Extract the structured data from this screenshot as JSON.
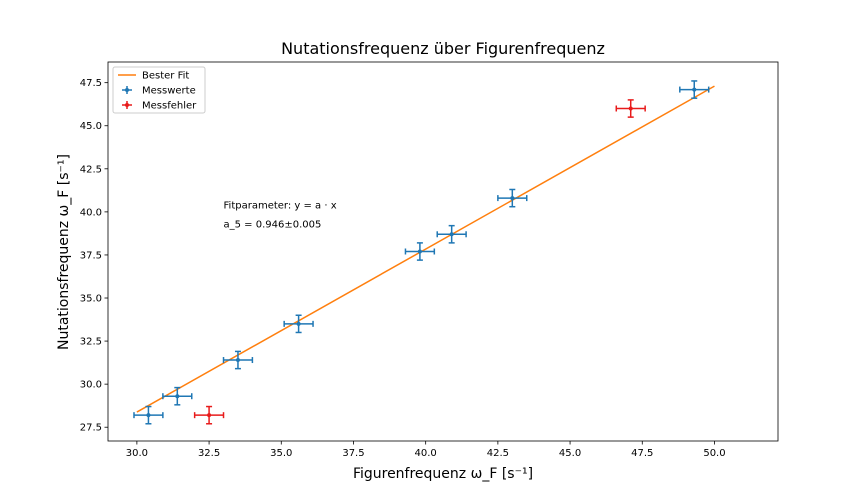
{
  "chart_data": {
    "type": "scatter",
    "title": "Nutationsfrequenz über Figurenfrequenz",
    "xlabel": "Figurenfrequenz ω_F [s⁻¹]",
    "ylabel": "Nutationsfrequenz ω_F [s⁻¹]",
    "xlim": [
      29.0,
      52.2
    ],
    "ylim": [
      26.7,
      48.7
    ],
    "xticks": [
      30.0,
      32.5,
      35.0,
      37.5,
      40.0,
      42.5,
      45.0,
      47.5,
      50.0
    ],
    "xtick_labels": [
      "30.0",
      "32.5",
      "35.0",
      "37.5",
      "40.0",
      "42.5",
      "45.0",
      "47.5",
      "50.0"
    ],
    "yticks": [
      27.5,
      30.0,
      32.5,
      35.0,
      37.5,
      40.0,
      42.5,
      45.0,
      47.5
    ],
    "ytick_labels": [
      "27.5",
      "30.0",
      "32.5",
      "35.0",
      "37.5",
      "40.0",
      "42.5",
      "45.0",
      "47.5"
    ],
    "grid": false,
    "legend_position": "top-left",
    "fit_line": {
      "name": "Bester Fit",
      "color": "#ff7f0e",
      "x": [
        30.0,
        50.0
      ],
      "y": [
        28.38,
        47.3
      ]
    },
    "series": [
      {
        "name": "Messwerte",
        "color": "#1f77b4",
        "points": [
          {
            "x": 30.4,
            "y": 28.2,
            "xerr": 0.5,
            "yerr": 0.5
          },
          {
            "x": 31.4,
            "y": 29.3,
            "xerr": 0.5,
            "yerr": 0.5
          },
          {
            "x": 33.5,
            "y": 31.4,
            "xerr": 0.5,
            "yerr": 0.5
          },
          {
            "x": 35.6,
            "y": 33.5,
            "xerr": 0.5,
            "yerr": 0.5
          },
          {
            "x": 39.8,
            "y": 37.7,
            "xerr": 0.5,
            "yerr": 0.5
          },
          {
            "x": 40.9,
            "y": 38.7,
            "xerr": 0.5,
            "yerr": 0.5
          },
          {
            "x": 43.0,
            "y": 40.8,
            "xerr": 0.5,
            "yerr": 0.5
          },
          {
            "x": 49.3,
            "y": 47.1,
            "xerr": 0.5,
            "yerr": 0.5
          }
        ]
      },
      {
        "name": "Messfehler",
        "color": "#e81b1b",
        "points": [
          {
            "x": 32.5,
            "y": 28.2,
            "xerr": 0.5,
            "yerr": 0.5
          },
          {
            "x": 47.1,
            "y": 46.0,
            "xerr": 0.5,
            "yerr": 0.5
          }
        ]
      }
    ],
    "annotations": [
      {
        "text": "Fitparameter: y = a · x",
        "at": [
          33.0,
          40.2
        ]
      },
      {
        "text": "a_5 = 0.946±0.005",
        "at": [
          33.0,
          39.1
        ]
      }
    ]
  }
}
